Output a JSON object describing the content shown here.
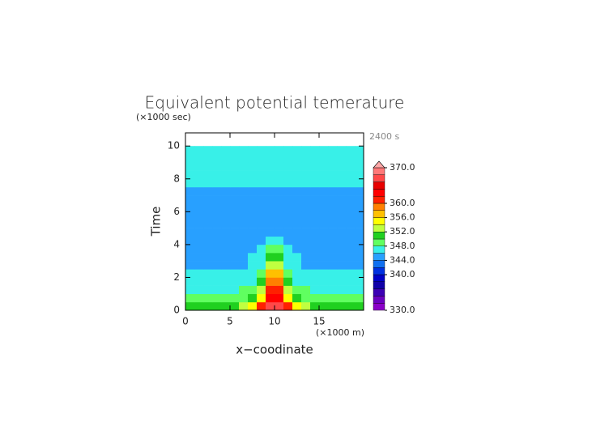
{
  "chart_data": {
    "type": "contourf",
    "title": "Equivalent potential temerature",
    "y_unit": "(×1000 sec)",
    "ylabel": "Time",
    "xlabel": "x−coodinate",
    "x_unit": "(×1000 m)",
    "time_label": "2400 s",
    "xlim": [
      0,
      20
    ],
    "xticks": [
      0,
      5,
      10,
      15
    ],
    "ylim": [
      0,
      10.8
    ],
    "yticks": [
      0,
      2,
      4,
      6,
      8,
      10
    ],
    "x": [
      0.5,
      1.5,
      2.5,
      3.5,
      4.5,
      5.5,
      6.5,
      7.5,
      8.5,
      9.5,
      10.5,
      11.5,
      12.5,
      13.5,
      14.5,
      15.5,
      16.5,
      17.5,
      18.5,
      19.5
    ],
    "y": [
      0.25,
      0.75,
      1.25,
      1.75,
      2.25,
      2.75,
      3.25,
      3.75,
      4.25,
      4.75,
      5.25,
      5.75,
      6.25,
      6.75,
      7.25,
      7.75,
      8.25,
      8.75,
      9.25,
      9.75
    ],
    "z": [
      [
        351,
        351,
        351,
        351,
        351,
        351,
        353,
        355,
        360,
        366,
        366,
        360,
        355,
        353,
        351,
        351,
        351,
        351,
        351,
        351
      ],
      [
        348.5,
        348.5,
        348.5,
        348.5,
        348.5,
        348.5,
        349,
        350,
        355,
        362,
        362,
        355,
        350,
        349,
        348.5,
        348.5,
        348.5,
        348.5,
        348.5,
        348.5
      ],
      [
        347.5,
        347.5,
        347.5,
        347.5,
        347.5,
        347.5,
        348,
        348.5,
        352,
        360,
        360,
        352,
        348.5,
        348,
        347.5,
        347.5,
        347.5,
        347.5,
        347.5,
        347.5
      ],
      [
        347,
        347,
        347,
        347,
        347,
        347,
        347.5,
        347.5,
        350,
        358,
        358,
        350,
        347.5,
        347.5,
        347,
        347,
        347,
        347,
        347,
        347
      ],
      [
        346.5,
        346.5,
        346.5,
        346.5,
        346.5,
        346.5,
        346.5,
        347,
        348.5,
        356,
        356,
        348.5,
        347,
        346.5,
        346.5,
        346.5,
        346.5,
        346.5,
        346.5,
        346.5
      ],
      [
        345,
        345,
        345,
        345,
        345,
        345,
        345,
        346.5,
        347,
        353,
        353,
        347,
        346.5,
        345,
        345,
        345,
        345,
        345,
        345,
        345
      ],
      [
        345,
        345,
        345,
        345,
        345,
        345,
        345,
        346.5,
        346.5,
        350,
        350,
        346.5,
        346.5,
        345,
        345,
        345,
        345,
        345,
        345,
        345
      ],
      [
        345,
        345,
        345,
        345,
        345,
        345,
        345,
        345,
        346.5,
        348,
        348,
        346.5,
        345,
        345,
        345,
        345,
        345,
        345,
        345,
        345
      ],
      [
        345,
        345,
        345,
        345,
        345,
        345,
        345,
        345,
        345,
        346.5,
        346.5,
        345,
        345,
        345,
        345,
        345,
        345,
        345,
        345,
        345
      ],
      [
        345,
        345,
        345,
        345,
        345,
        345,
        345,
        345,
        345,
        345,
        345,
        345,
        345,
        345,
        345,
        345,
        345,
        345,
        345,
        345
      ],
      [
        345,
        345,
        345,
        345,
        345,
        345,
        345,
        345,
        345,
        345,
        345,
        345,
        345,
        345,
        345,
        345,
        345,
        345,
        345,
        345
      ],
      [
        345,
        345,
        345,
        345,
        345,
        345,
        345,
        345,
        345,
        345,
        345,
        345,
        345,
        345,
        345,
        345,
        345,
        345,
        345,
        345
      ],
      [
        345,
        345,
        345,
        345,
        345,
        345,
        345,
        345,
        345,
        345,
        345,
        345,
        345,
        345,
        345,
        345,
        345,
        345,
        345,
        345
      ],
      [
        345,
        345,
        345,
        345,
        345,
        345,
        345,
        345,
        345,
        345,
        345,
        345,
        345,
        345,
        345,
        345,
        345,
        345,
        345,
        345
      ],
      [
        345,
        345,
        345,
        345,
        345,
        345,
        345,
        345,
        345,
        345,
        345,
        345,
        345,
        345,
        345,
        345,
        345,
        345,
        345,
        345
      ],
      [
        346.5,
        346.5,
        346.5,
        346.5,
        346.5,
        346.5,
        346.5,
        346.5,
        346.5,
        346.5,
        346.5,
        346.5,
        346.5,
        346.5,
        346.5,
        346.5,
        346.5,
        346.5,
        346.5,
        346.5
      ],
      [
        346.5,
        346.5,
        346.5,
        346.5,
        346.5,
        346.5,
        346.5,
        346.5,
        346.5,
        346.5,
        346.5,
        346.5,
        346.5,
        346.5,
        346.5,
        346.5,
        346.5,
        346.5,
        346.5,
        346.5
      ],
      [
        346.5,
        346.5,
        346.5,
        346.5,
        346.5,
        346.5,
        346.5,
        346.5,
        346.5,
        346.5,
        346.5,
        346.5,
        346.5,
        346.5,
        346.5,
        346.5,
        346.5,
        346.5,
        346.5,
        346.5
      ],
      [
        346.5,
        346.5,
        346.5,
        346.5,
        346.5,
        346.5,
        346.5,
        346.5,
        346.5,
        346.5,
        346.5,
        346.5,
        346.5,
        346.5,
        346.5,
        346.5,
        346.5,
        346.5,
        346.5,
        346.5
      ],
      [
        346.5,
        346.5,
        346.5,
        346.5,
        346.5,
        346.5,
        346.5,
        346.5,
        346.5,
        346.5,
        346.5,
        346.5,
        346.5,
        346.5,
        346.5,
        346.5,
        346.5,
        346.5,
        346.5,
        346.5
      ]
    ],
    "levels": [
      330,
      332,
      334,
      336,
      338,
      340,
      342,
      344,
      346,
      348,
      350,
      352,
      354,
      356,
      358,
      360,
      362,
      364,
      366,
      368,
      370
    ],
    "colors": [
      "#8a00c8",
      "#6a00c0",
      "#3c00b4",
      "#1000a8",
      "#0000c8",
      "#0030e0",
      "#1070f0",
      "#28a0ff",
      "#38f0e8",
      "#60ff60",
      "#20d020",
      "#c0ff40",
      "#ffff00",
      "#ffc000",
      "#ff8000",
      "#ff2000",
      "#ff0000",
      "#e80000",
      "#ff4848",
      "#ff7878"
    ],
    "extend_color": "#ffa8a8",
    "cbar_lim": [
      330,
      370
    ],
    "cbar_ticks": [
      {
        "value": 370,
        "label": "370.0"
      },
      {
        "value": 360,
        "label": "360.0"
      },
      {
        "value": 356,
        "label": "356.0"
      },
      {
        "value": 352,
        "label": "352.0"
      },
      {
        "value": 348,
        "label": "348.0"
      },
      {
        "value": 344,
        "label": "344.0"
      },
      {
        "value": 340,
        "label": "340.0"
      },
      {
        "value": 330,
        "label": "330.0"
      }
    ]
  }
}
